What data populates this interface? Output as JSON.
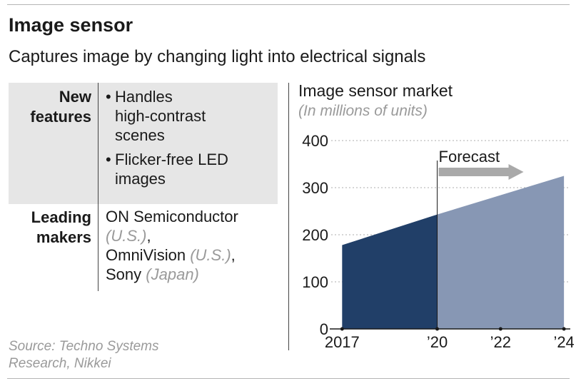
{
  "header": {
    "title": "Image sensor",
    "subtitle": "Captures image by changing light into electrical signals"
  },
  "table": {
    "new_features": {
      "label_line1": "New",
      "label_line2": "features",
      "items": [
        "Handles high-contrast scenes",
        "Flicker-free LED images"
      ],
      "item1_lines": [
        "Handles",
        "high-contrast",
        "scenes"
      ],
      "item2_lines": [
        "Flicker-free LED",
        "images"
      ]
    },
    "leading_makers": {
      "label_line1": "Leading",
      "label_line2": "makers",
      "maker1_name": "ON Semiconductor",
      "maker1_country": "(U.S.)",
      "maker2_name": "OmniVision",
      "maker2_country": "(U.S.)",
      "maker3_name": "Sony",
      "maker3_country": "(Japan)"
    }
  },
  "source": {
    "line1": "Source: Techno Systems",
    "line2": "Research, Nikkei"
  },
  "chart_data": {
    "type": "area",
    "title": "Image sensor market",
    "subtitle": "(In millions of units)",
    "x": [
      2017,
      2020,
      2024
    ],
    "y": [
      178,
      243,
      325
    ],
    "xtick_values": [
      2017,
      2020,
      2022,
      2024
    ],
    "xtick_labels": [
      "2017",
      "’20",
      "’22",
      "’24"
    ],
    "ytick_values": [
      0,
      100,
      200,
      300,
      400
    ],
    "ytick_labels": [
      "0",
      "100",
      "200",
      "300",
      "400"
    ],
    "ylim": [
      0,
      400
    ],
    "xlim": [
      2016.7,
      2024.2
    ],
    "grid": "dotted horizontal",
    "forecast_start": 2020,
    "forecast_label": "Forecast",
    "colors": {
      "actual": "#213f68",
      "forecast": "#8797b4",
      "arrow": "#a9a9a9",
      "grid": "#bdbdbd"
    }
  }
}
